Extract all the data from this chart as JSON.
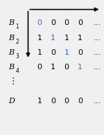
{
  "rows": [
    {
      "label": "B",
      "sub": "1",
      "digits": [
        "0",
        "0",
        "0",
        "0"
      ],
      "blue_idx": 0
    },
    {
      "label": "B",
      "sub": "2",
      "digits": [
        "1",
        "1",
        "1",
        "1"
      ],
      "blue_idx": 1
    },
    {
      "label": "B",
      "sub": "3",
      "digits": [
        "1",
        "0",
        "1",
        "0"
      ],
      "blue_idx": 2
    },
    {
      "label": "B",
      "sub": "4",
      "digits": [
        "0",
        "1",
        "0",
        "1"
      ],
      "blue_idx": 3
    }
  ],
  "d_row": {
    "label": "D",
    "digits": [
      "1",
      "0",
      "0",
      "0"
    ]
  },
  "normal_color": "#000000",
  "blue_color": "#3366ff",
  "background": "#f0f0f0",
  "arrow_color": "#000000",
  "figsize": [
    1.5,
    1.95
  ],
  "dpi": 100
}
